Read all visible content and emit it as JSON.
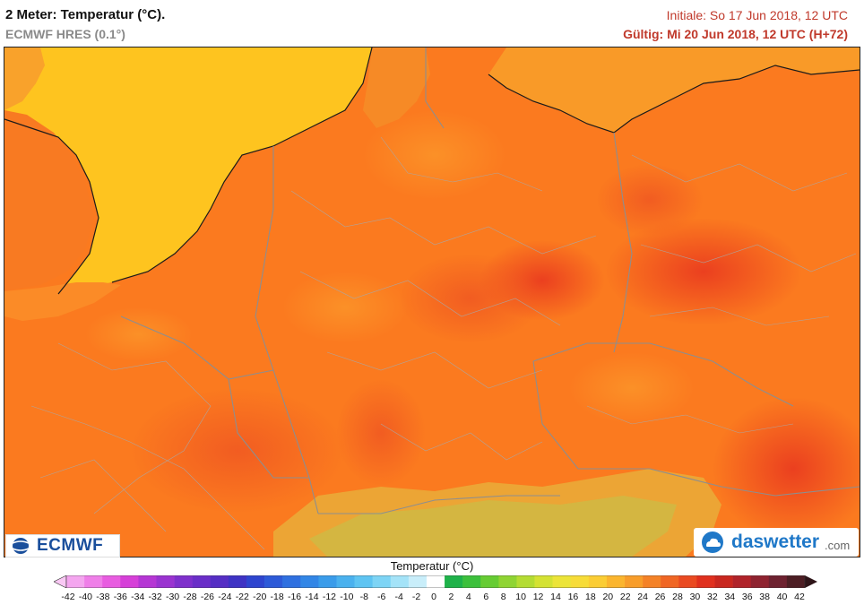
{
  "header": {
    "title": "2 Meter: Temperatur (°C).",
    "model": "ECMWF HRES (0.1°)",
    "initial": "Initiale: So 17 Jun 2018, 12 UTC",
    "valid": "Gültig: Mi 20 Jun 2018, 12 UTC (H+72)"
  },
  "logos": {
    "ecmwf": "ECMWF",
    "daswetter_name": "daswetter",
    "daswetter_tld": ".com"
  },
  "legend": {
    "title": "Temperatur (°C)",
    "ticks": [
      "-42",
      "-40",
      "-38",
      "-36",
      "-34",
      "-32",
      "-30",
      "-28",
      "-26",
      "-24",
      "-22",
      "-20",
      "-18",
      "-16",
      "-14",
      "-12",
      "-10",
      "-8",
      "-6",
      "-4",
      "-2",
      "0",
      "2",
      "4",
      "6",
      "8",
      "10",
      "12",
      "14",
      "16",
      "18",
      "20",
      "22",
      "24",
      "26",
      "28",
      "30",
      "32",
      "34",
      "36",
      "38",
      "40",
      "42"
    ],
    "colors": [
      "#f9c8f4",
      "#f4a6ef",
      "#ef7fe8",
      "#e85ce0",
      "#d63fd8",
      "#b536d4",
      "#9a33d0",
      "#7f30cc",
      "#6a2ec8",
      "#552ec4",
      "#3e33c4",
      "#2e45cf",
      "#2d5ad8",
      "#2f70e0",
      "#3286e6",
      "#3a9cea",
      "#4ab1ee",
      "#5ec4f2",
      "#7dd4f5",
      "#a4e3f8",
      "#c9eefa",
      "#ffffff",
      "#1fb24a",
      "#3cc03c",
      "#66cc33",
      "#8fd433",
      "#b4dc33",
      "#d4e233",
      "#ece438",
      "#f7dc38",
      "#fbcd34",
      "#fbb52e",
      "#f89d2a",
      "#f48227",
      "#f06624",
      "#ea4a21",
      "#e0301e",
      "#c9271f",
      "#b0232a",
      "#8f2330",
      "#6e2230",
      "#4d1e24",
      "#2e1418"
    ]
  },
  "map_colors": {
    "sea": "#fec41f",
    "land_base": "#fb7a1f",
    "warm_zone": "#f45e21",
    "hot_zone": "#ea4524",
    "cool_coast": "#f98f28",
    "alps": "#e8b33a",
    "borders": "#8e8e8e",
    "coast": "#1a1a1a"
  }
}
